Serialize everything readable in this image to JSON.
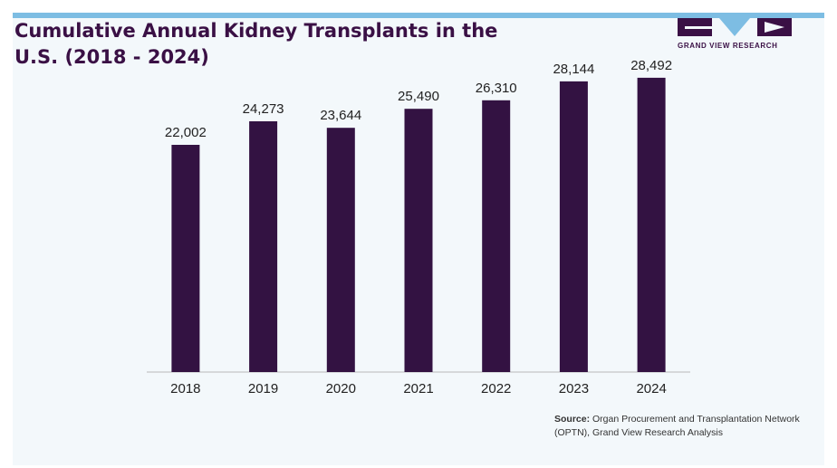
{
  "title_line1": "Cumulative Annual Kidney Transplants in the",
  "title_line2": "U.S. (2018 - 2024)",
  "logo": {
    "text": "GRAND VIEW RESEARCH",
    "color": "#3a1045",
    "accent": "#7dbde3"
  },
  "source": {
    "label": "Source:",
    "text": "Organ Procurement and Transplantation Network (OPTN), Grand View Research Analysis"
  },
  "chart_data": {
    "type": "bar",
    "title": "Cumulative Annual Kidney Transplants in the U.S. (2018 - 2024)",
    "categories": [
      "2018",
      "2019",
      "2020",
      "2021",
      "2022",
      "2023",
      "2024"
    ],
    "values": [
      22002,
      24273,
      23644,
      25490,
      26310,
      28144,
      28492
    ],
    "value_labels": [
      "22,002",
      "24,273",
      "23,644",
      "25,490",
      "26,310",
      "28,144",
      "28,492"
    ],
    "bar_color": "#331242",
    "grid": false,
    "ylim": [
      0,
      31000
    ]
  }
}
